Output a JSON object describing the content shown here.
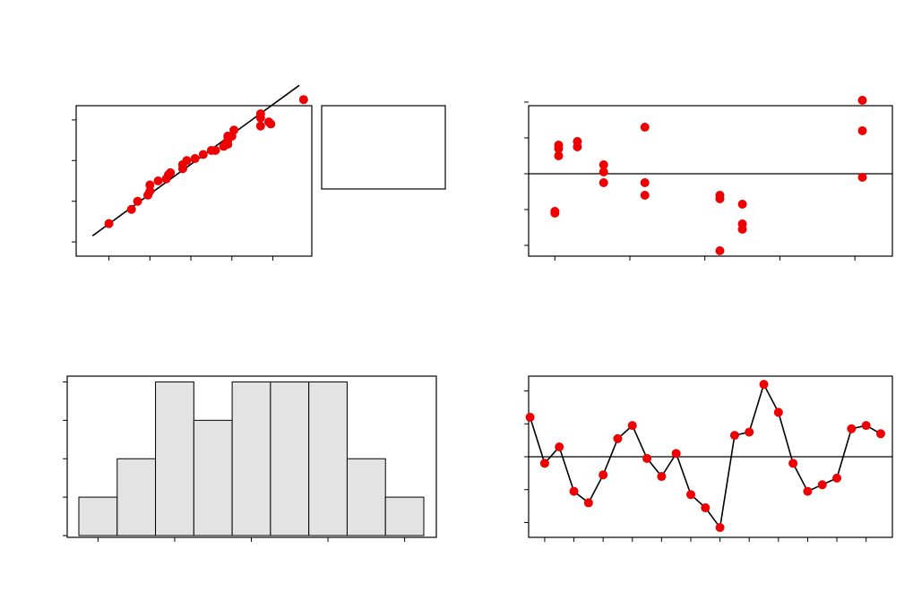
{
  "chart_data": [
    {
      "type": "scatter",
      "panel": "normal-probability-plot",
      "xlim": [
        -3.4,
        2.35
      ],
      "ylim": [
        -2.35,
        1.35
      ],
      "x_ticks": [
        -2.6,
        -1.6,
        -0.6,
        0.4,
        1.4
      ],
      "y_ticks": [
        -2,
        -1,
        0,
        1
      ],
      "points": [
        {
          "x": -2.6,
          "y": -1.55
        },
        {
          "x": -2.05,
          "y": -1.2
        },
        {
          "x": -1.9,
          "y": -1.0
        },
        {
          "x": -1.65,
          "y": -0.85
        },
        {
          "x": -1.6,
          "y": -0.75
        },
        {
          "x": -1.6,
          "y": -0.6
        },
        {
          "x": -1.4,
          "y": -0.5
        },
        {
          "x": -1.2,
          "y": -0.45
        },
        {
          "x": -1.15,
          "y": -0.35
        },
        {
          "x": -1.1,
          "y": -0.3
        },
        {
          "x": -0.8,
          "y": -0.2
        },
        {
          "x": -0.8,
          "y": -0.1
        },
        {
          "x": -0.7,
          "y": 0.0
        },
        {
          "x": -0.5,
          "y": 0.05
        },
        {
          "x": -0.3,
          "y": 0.15
        },
        {
          "x": -0.1,
          "y": 0.25
        },
        {
          "x": 0.0,
          "y": 0.25
        },
        {
          "x": 0.2,
          "y": 0.35
        },
        {
          "x": 0.25,
          "y": 0.4
        },
        {
          "x": 0.3,
          "y": 0.5
        },
        {
          "x": 0.4,
          "y": 0.6
        },
        {
          "x": 0.45,
          "y": 0.75
        },
        {
          "x": 0.3,
          "y": 0.4
        },
        {
          "x": 0.3,
          "y": 0.6
        },
        {
          "x": 1.3,
          "y": 0.95
        },
        {
          "x": 1.1,
          "y": 1.15
        },
        {
          "x": 1.1,
          "y": 1.05
        },
        {
          "x": 1.1,
          "y": 0.85
        },
        {
          "x": 1.35,
          "y": 0.9
        },
        {
          "x": 2.15,
          "y": 1.5
        }
      ],
      "fit_line": {
        "x": [
          -3.0,
          2.35
        ],
        "y": [
          -1.85,
          1.85
        ]
      },
      "grid": false
    },
    {
      "type": "scatter",
      "panel": "residuals-versus-fits",
      "xlim": [
        13.3,
        23.0
      ],
      "ylim": [
        -2.3,
        1.9
      ],
      "x_ticks": [
        14,
        16,
        18,
        20,
        22
      ],
      "y_ticks": [
        -2,
        -1,
        0,
        1,
        2
      ],
      "reference_y": 0,
      "points": [
        {
          "x": 14.0,
          "y": -1.05
        },
        {
          "x": 14.0,
          "y": -1.1
        },
        {
          "x": 14.1,
          "y": 0.7
        },
        {
          "x": 14.1,
          "y": 0.8
        },
        {
          "x": 14.1,
          "y": 0.5
        },
        {
          "x": 14.6,
          "y": 0.9
        },
        {
          "x": 14.6,
          "y": 0.75
        },
        {
          "x": 15.3,
          "y": 0.25
        },
        {
          "x": 15.3,
          "y": 0.05
        },
        {
          "x": 15.3,
          "y": -0.25
        },
        {
          "x": 16.4,
          "y": 1.3
        },
        {
          "x": 16.4,
          "y": -0.25
        },
        {
          "x": 16.4,
          "y": -0.6
        },
        {
          "x": 18.4,
          "y": -0.6
        },
        {
          "x": 18.4,
          "y": -0.7
        },
        {
          "x": 18.4,
          "y": -2.15
        },
        {
          "x": 19.0,
          "y": -0.85
        },
        {
          "x": 19.0,
          "y": -1.4
        },
        {
          "x": 19.0,
          "y": -1.55
        },
        {
          "x": 22.2,
          "y": 2.05
        },
        {
          "x": 22.2,
          "y": 1.2
        },
        {
          "x": 22.2,
          "y": -0.1
        }
      ],
      "grid": false
    },
    {
      "type": "bar",
      "panel": "histogram-of-residuals",
      "bins": 9,
      "values": [
        1,
        2,
        4,
        3,
        4,
        4,
        4,
        2,
        1
      ],
      "ylim": [
        0,
        4.15
      ],
      "y_ticks": [
        0,
        1,
        2,
        3,
        4
      ],
      "x_tick_count": 5,
      "grid": false,
      "fill_color": "#e3e3e3"
    },
    {
      "type": "line",
      "panel": "residuals-versus-order",
      "x": [
        1,
        2,
        3,
        4,
        5,
        6,
        7,
        8,
        9,
        10,
        11,
        12,
        13,
        14,
        15,
        16,
        17,
        18,
        19,
        20,
        21,
        22,
        23,
        24,
        25
      ],
      "values": [
        1.2,
        -0.2,
        0.3,
        -1.05,
        -1.4,
        -0.55,
        0.55,
        0.95,
        -0.05,
        -0.6,
        0.1,
        -1.15,
        -1.55,
        -2.15,
        0.65,
        0.75,
        2.2,
        1.35,
        -0.2,
        -1.05,
        -0.85,
        -0.65,
        0.85,
        0.95,
        0.7
      ],
      "xlim": [
        0.9,
        25.8
      ],
      "ylim": [
        -2.45,
        2.45
      ],
      "x_ticks": [
        2,
        4,
        6,
        8,
        10,
        12,
        14,
        16,
        18,
        20,
        22,
        24
      ],
      "y_ticks": [
        -2,
        -1,
        0,
        1,
        2
      ],
      "reference_y": 0,
      "grid": false
    }
  ],
  "colors": {
    "point": "#ee0000",
    "line": "#000000",
    "bar_fill": "#e3e3e3",
    "background": "#ffffff"
  }
}
